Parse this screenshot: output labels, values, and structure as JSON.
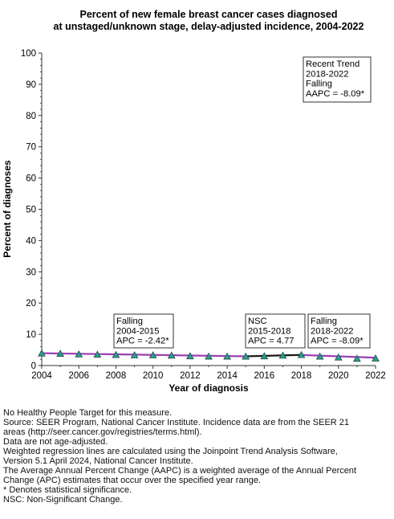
{
  "chart_data": {
    "type": "line",
    "title_lines": [
      "Percent of new female breast cancer cases diagnosed",
      "at unstaged/unknown stage, delay-adjusted incidence, 2004-2022"
    ],
    "xlabel": "Year of diagnosis",
    "ylabel": "Percent of diagnoses",
    "xlim": [
      2004,
      2022
    ],
    "ylim": [
      0,
      100
    ],
    "x_ticks": [
      2004,
      2006,
      2008,
      2010,
      2012,
      2014,
      2016,
      2018,
      2020,
      2022
    ],
    "y_ticks": [
      0,
      10,
      20,
      30,
      40,
      50,
      60,
      70,
      80,
      90,
      100
    ],
    "grid": false,
    "observed": {
      "x": [
        2004,
        2005,
        2006,
        2007,
        2008,
        2009,
        2010,
        2011,
        2012,
        2013,
        2014,
        2015,
        2016,
        2017,
        2018,
        2019,
        2020,
        2021,
        2022
      ],
      "y": [
        3.9,
        3.8,
        3.6,
        3.5,
        3.4,
        3.3,
        3.3,
        3.2,
        3.0,
        2.9,
        2.9,
        2.9,
        3.0,
        3.2,
        3.4,
        2.9,
        2.6,
        2.2,
        2.3
      ]
    },
    "segments": [
      {
        "x": [
          2004,
          2015
        ],
        "y": [
          3.95,
          2.95
        ],
        "color": "#9b3fb5"
      },
      {
        "x": [
          2015,
          2018
        ],
        "y": [
          2.95,
          3.4
        ],
        "color": "#1a1a1a"
      },
      {
        "x": [
          2018,
          2022
        ],
        "y": [
          3.4,
          2.5
        ],
        "color": "#9b3fb5"
      }
    ],
    "marker_color": "#2e9c8e",
    "annotations": [
      {
        "lines": [
          "Falling",
          "2004-2015",
          "APC = -2.42*"
        ]
      },
      {
        "lines": [
          "NSC",
          "2015-2018",
          "APC =  4.77"
        ]
      },
      {
        "lines": [
          "Falling",
          "2018-2022",
          "APC = -8.09*"
        ]
      },
      {
        "lines": [
          "Recent Trend",
          "2018-2022",
          "Falling",
          "AAPC = -8.09*"
        ]
      }
    ]
  },
  "notes": [
    "No Healthy People Target for this measure.",
    "Source: SEER Program, National Cancer Institute. Incidence data are from the SEER 21",
    "areas (http://seer.cancer.gov/registries/terms.html).",
    "Data are not age-adjusted.",
    "Weighted regression lines are calculated using the Joinpoint Trend Analysis Software,",
    "Version 5.1 April 2024, National Cancer Institute.",
    "The Average Annual Percent Change (AAPC) is a weighted average of the Annual Percent",
    "Change (APC) estimates that occur over the specified year range.",
    "* Denotes statistical significance.",
    "NSC: Non-Significant Change."
  ]
}
